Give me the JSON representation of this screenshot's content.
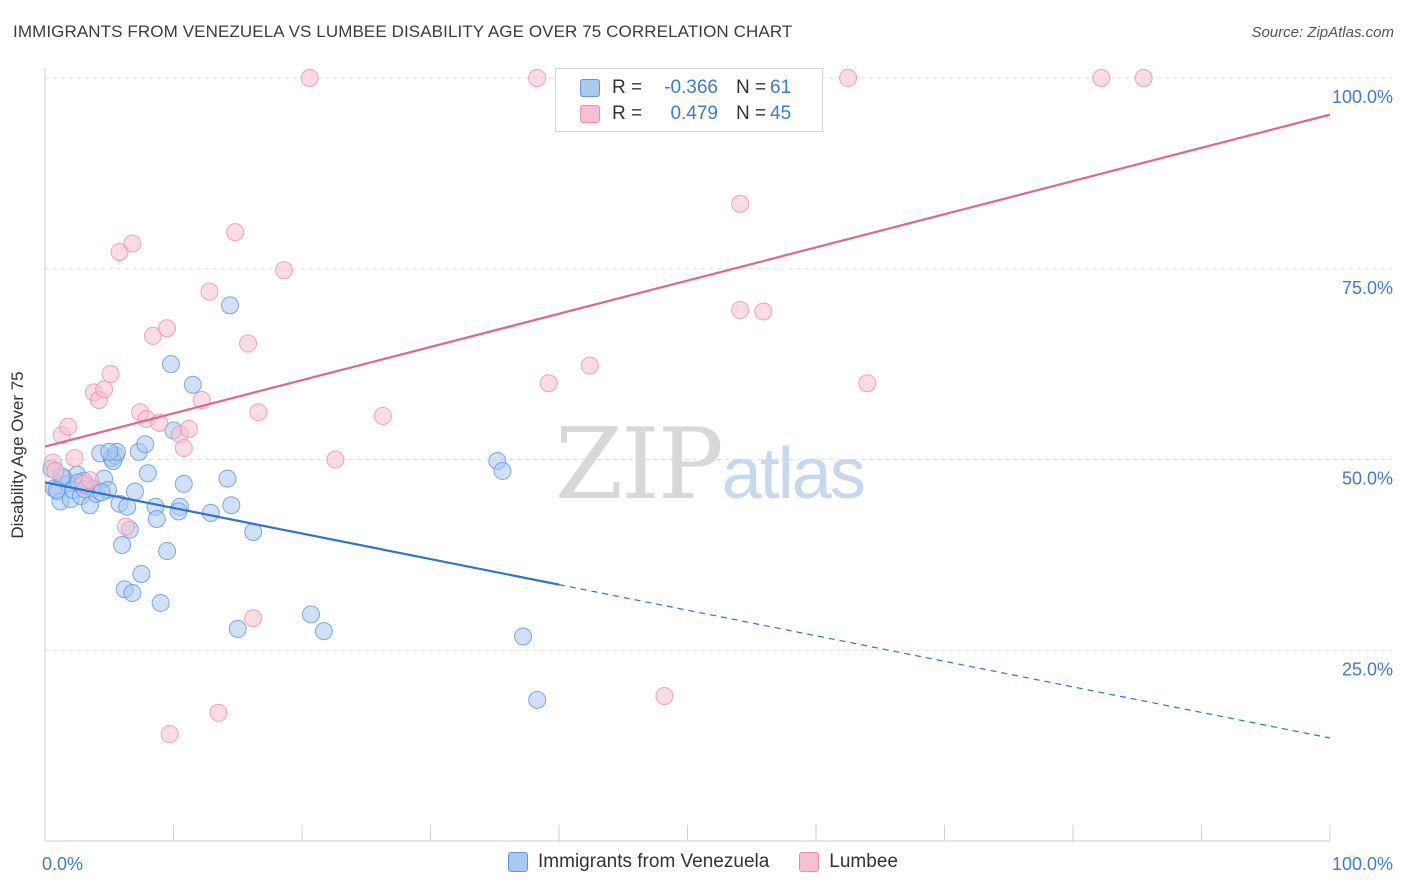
{
  "title": "IMMIGRANTS FROM VENEZUELA VS LUMBEE DISABILITY AGE OVER 75 CORRELATION CHART",
  "source": "Source: ZipAtlas.com",
  "watermark": {
    "zip": "ZIP",
    "atlas": "atlas"
  },
  "legend": {
    "rows": [
      {
        "r_label": "R =",
        "r_value": "-0.366",
        "n_label": "N =",
        "n_value": "61"
      },
      {
        "r_label": "R =",
        "r_value": "0.479",
        "n_label": "N =",
        "n_value": "45"
      }
    ]
  },
  "colors": {
    "blue_fill": "#a9c9f1",
    "blue_stroke": "#5f96dc",
    "blue_line": "#2f74d0",
    "pink_fill": "#f7bfd0",
    "pink_stroke": "#e98fac",
    "pink_line": "#e0668f",
    "grid": "#dcdcdc",
    "tick_label": "#3d7bd8"
  },
  "chart_data": {
    "type": "scatter",
    "title": "IMMIGRANTS FROM VENEZUELA VS LUMBEE DISABILITY AGE OVER 75 CORRELATION CHART",
    "xlabel": "",
    "ylabel": "Disability Age Over 75",
    "xlim": [
      0,
      100
    ],
    "ylim": [
      0,
      105
    ],
    "x_tick_labels": [
      "0.0%",
      "100.0%"
    ],
    "y_ticks": [
      25,
      50,
      75,
      100
    ],
    "y_tick_labels": [
      "25.0%",
      "50.0%",
      "75.0%",
      "100.0%"
    ],
    "series": [
      {
        "name": "Immigrants from Venezuela",
        "color": "blue",
        "trend": {
          "x0": 0,
          "y0": 47.0,
          "x1": 100,
          "y1": 13.5,
          "solid_until_x": 40
        },
        "points": [
          [
            0.5,
            48.8
          ],
          [
            0.7,
            46.2
          ],
          [
            1.0,
            45.8
          ],
          [
            1.2,
            44.5
          ],
          [
            1.5,
            47.5
          ],
          [
            1.8,
            46.8
          ],
          [
            2.0,
            44.8
          ],
          [
            2.2,
            46.0
          ],
          [
            2.5,
            48.0
          ],
          [
            2.8,
            45.2
          ],
          [
            3.0,
            47.2
          ],
          [
            3.3,
            46.5
          ],
          [
            3.5,
            44.0
          ],
          [
            3.8,
            46.2
          ],
          [
            4.0,
            45.5
          ],
          [
            4.3,
            50.8
          ],
          [
            4.6,
            47.5
          ],
          [
            4.9,
            46.0
          ],
          [
            5.2,
            50.2
          ],
          [
            5.5,
            50.5
          ],
          [
            5.3,
            49.8
          ],
          [
            5.6,
            51.0
          ],
          [
            5.8,
            44.2
          ],
          [
            6.0,
            38.8
          ],
          [
            6.2,
            33.0
          ],
          [
            6.4,
            43.8
          ],
          [
            6.6,
            40.8
          ],
          [
            6.8,
            32.5
          ],
          [
            7.0,
            45.8
          ],
          [
            7.5,
            35.0
          ],
          [
            7.3,
            51.0
          ],
          [
            7.8,
            52.0
          ],
          [
            8.0,
            48.2
          ],
          [
            8.6,
            43.8
          ],
          [
            8.7,
            42.2
          ],
          [
            9.0,
            31.2
          ],
          [
            9.5,
            38.0
          ],
          [
            9.8,
            62.5
          ],
          [
            10.0,
            53.8
          ],
          [
            10.5,
            43.8
          ],
          [
            10.4,
            43.2
          ],
          [
            10.8,
            46.8
          ],
          [
            11.5,
            59.8
          ],
          [
            12.9,
            43.0
          ],
          [
            14.2,
            47.5
          ],
          [
            14.5,
            44.0
          ],
          [
            14.4,
            70.2
          ],
          [
            15.0,
            27.8
          ],
          [
            16.2,
            40.5
          ],
          [
            20.7,
            29.7
          ],
          [
            21.7,
            27.5
          ],
          [
            35.2,
            49.8
          ],
          [
            35.6,
            48.5
          ],
          [
            37.2,
            26.8
          ],
          [
            38.3,
            18.5
          ],
          [
            1.3,
            47.8
          ],
          [
            2.6,
            47.0
          ],
          [
            3.1,
            46.1
          ],
          [
            0.9,
            46.0
          ],
          [
            4.4,
            45.7
          ],
          [
            5.0,
            51.0
          ]
        ]
      },
      {
        "name": "Lumbee",
        "color": "pink",
        "trend": {
          "x0": 0,
          "y0": 51.7,
          "x1": 100,
          "y1": 95.2
        },
        "points": [
          [
            0.6,
            49.6
          ],
          [
            0.8,
            48.5
          ],
          [
            1.3,
            53.2
          ],
          [
            1.8,
            54.3
          ],
          [
            2.3,
            50.2
          ],
          [
            3.0,
            46.8
          ],
          [
            3.8,
            58.8
          ],
          [
            4.2,
            57.8
          ],
          [
            4.6,
            59.2
          ],
          [
            5.1,
            61.2
          ],
          [
            5.8,
            77.2
          ],
          [
            6.3,
            41.2
          ],
          [
            6.8,
            78.3
          ],
          [
            7.4,
            56.2
          ],
          [
            7.9,
            55.3
          ],
          [
            8.4,
            66.2
          ],
          [
            8.9,
            54.8
          ],
          [
            9.5,
            67.2
          ],
          [
            10.5,
            53.3
          ],
          [
            10.8,
            51.5
          ],
          [
            11.2,
            54.0
          ],
          [
            12.2,
            57.8
          ],
          [
            12.8,
            72.0
          ],
          [
            13.5,
            16.8
          ],
          [
            14.8,
            79.8
          ],
          [
            15.8,
            65.2
          ],
          [
            16.2,
            29.2
          ],
          [
            16.6,
            56.2
          ],
          [
            18.6,
            74.8
          ],
          [
            20.6,
            100
          ],
          [
            22.6,
            50.0
          ],
          [
            26.3,
            55.7
          ],
          [
            38.3,
            100
          ],
          [
            39.2,
            60.0
          ],
          [
            42.4,
            62.3
          ],
          [
            48.2,
            19.0
          ],
          [
            54.1,
            83.5
          ],
          [
            54.1,
            69.6
          ],
          [
            55.9,
            69.4
          ],
          [
            62.5,
            100
          ],
          [
            64.0,
            60.0
          ],
          [
            82.2,
            100
          ],
          [
            85.5,
            100
          ],
          [
            9.7,
            14.0
          ],
          [
            3.5,
            47.3
          ]
        ]
      }
    ]
  },
  "bottom_legend": [
    {
      "label": "Immigrants from Venezuela"
    },
    {
      "label": "Lumbee"
    }
  ]
}
